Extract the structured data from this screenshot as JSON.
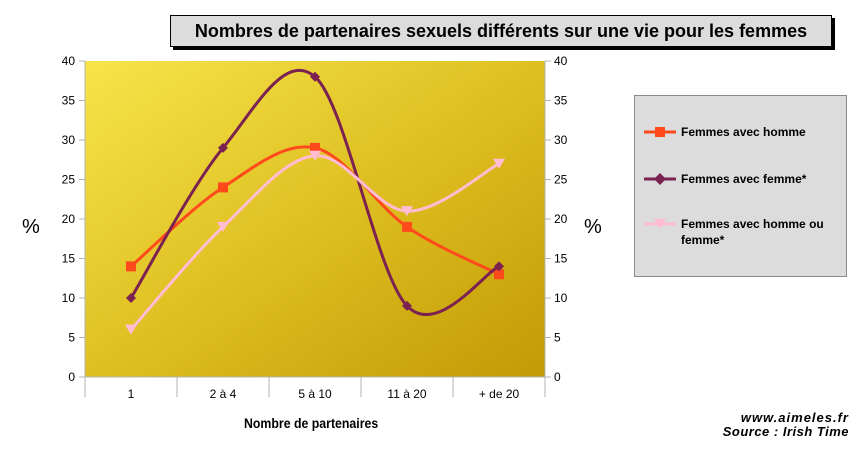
{
  "chart_data": {
    "type": "line",
    "title": "Nombres de partenaires sexuels différents sur une vie pour les femmes",
    "xlabel": "Nombre de partenaires",
    "ylabel_left": "%",
    "ylabel_right": "%",
    "categories": [
      "1",
      "2 à 4",
      "5 à 10",
      "11 à 20",
      "+ de 20"
    ],
    "ylim": [
      0,
      40
    ],
    "yticks": [
      0,
      5,
      10,
      15,
      20,
      25,
      30,
      35,
      40
    ],
    "grid": false,
    "legend_position": "right",
    "series": [
      {
        "name": "Femmes avec homme",
        "values": [
          14,
          24,
          29,
          19,
          13
        ],
        "color": "#ff4a1c",
        "marker": "square"
      },
      {
        "name": "Femmes avec femme*",
        "values": [
          10,
          29,
          38,
          9,
          14
        ],
        "color": "#7b2250",
        "marker": "diamond"
      },
      {
        "name": "Femmes avec homme ou femme*",
        "values": [
          6,
          19,
          28,
          21,
          27
        ],
        "color": "#ffbcd3",
        "marker": "triangle"
      }
    ]
  },
  "footer": {
    "site": "www.aimeles.fr",
    "source": "Source : Irish Time"
  }
}
